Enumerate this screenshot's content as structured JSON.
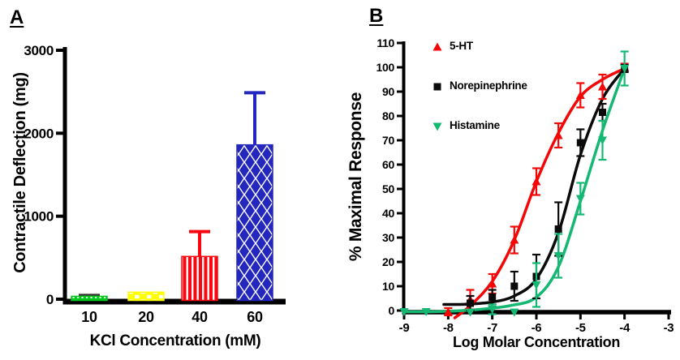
{
  "panels": {
    "a": {
      "label": "A"
    },
    "b": {
      "label": "B"
    }
  },
  "chart_data": [
    {
      "type": "bar",
      "panel": "A",
      "xlabel": "KCl Concentration (mM)",
      "ylabel": "Contractile Deflection (mg)",
      "categories": [
        "10",
        "20",
        "40",
        "60"
      ],
      "values": [
        35,
        85,
        515,
        1860
      ],
      "error_up": [
        10,
        0,
        300,
        628
      ],
      "ylim": [
        0,
        3000
      ],
      "yticks": [
        0,
        1000,
        2000,
        3000
      ],
      "grid": false,
      "bar_colors": [
        "#00c71c",
        "#ffff00",
        "#fb0510",
        "#2427bd"
      ],
      "error_colors": [
        "#333333",
        "#ffff00",
        "#fb0510",
        "#2427bd"
      ],
      "bar_patterns": [
        "dots",
        "checker",
        "vstripes",
        "diamonds"
      ]
    },
    {
      "type": "scatter",
      "panel": "B",
      "xlabel": "Log Molar Concentration",
      "ylabel": "% Maximal Response",
      "xlim": [
        -9,
        -3
      ],
      "ylim": [
        0,
        110
      ],
      "yticks": [
        0,
        10,
        20,
        30,
        40,
        50,
        60,
        70,
        80,
        90,
        100,
        110
      ],
      "xticks": [
        -9,
        -8,
        -7,
        -6,
        -5,
        -4,
        -3
      ],
      "grid": false,
      "legend_position": "top-left",
      "series": [
        {
          "name": "5-HT",
          "color": "#f40606",
          "marker": "triangle-up",
          "x": [
            -8,
            -7.5,
            -7,
            -6.5,
            -6,
            -5.5,
            -5,
            -4.5,
            -4
          ],
          "y": [
            -0.5,
            4.5,
            11,
            29,
            53,
            72,
            88.5,
            92,
            100
          ],
          "err": [
            1.5,
            4,
            4,
            5.5,
            5.5,
            5,
            5,
            5,
            1.5
          ],
          "curve": [
            [
              -7.85,
              -3
            ],
            [
              -7.5,
              2
            ],
            [
              -7,
              12
            ],
            [
              -6.5,
              29
            ],
            [
              -6,
              53
            ],
            [
              -5.5,
              73
            ],
            [
              -5,
              88
            ],
            [
              -4.5,
              95
            ],
            [
              -4,
              99.5
            ]
          ]
        },
        {
          "name": "Norepinephrine",
          "color": "#0a0a0a",
          "marker": "square",
          "x": [
            -7.5,
            -7,
            -6.5,
            -6,
            -5.5,
            -5,
            -4.5,
            -4
          ],
          "y": [
            3,
            5.5,
            10,
            14,
            33.5,
            69,
            81.5,
            99.5
          ],
          "err": [
            3,
            3,
            6,
            9,
            11,
            5.5,
            3.5,
            1.5
          ],
          "curve": [
            [
              -8.1,
              2.5
            ],
            [
              -7.6,
              2.6
            ],
            [
              -7,
              3.5
            ],
            [
              -6.5,
              6
            ],
            [
              -6,
              13
            ],
            [
              -5.5,
              32
            ],
            [
              -5,
              64
            ],
            [
              -4.5,
              87
            ],
            [
              -4,
              99.5
            ]
          ]
        },
        {
          "name": "Histamine",
          "color": "#14b873",
          "marker": "triangle-down",
          "x": [
            -9,
            -8.5,
            -7.5,
            -7,
            -6.5,
            -6,
            -5.5,
            -5,
            -4.5,
            -4
          ],
          "y": [
            -0.5,
            -0.5,
            -0.7,
            0.5,
            -0.7,
            10.5,
            22.5,
            46,
            70,
            99.5
          ],
          "err": [
            0,
            0,
            0,
            2,
            0,
            9,
            9,
            6.5,
            8,
            7
          ],
          "curve": [
            [
              -9,
              -0.5
            ],
            [
              -8.2,
              -0.4
            ],
            [
              -7.4,
              0.3
            ],
            [
              -6.6,
              2
            ],
            [
              -6,
              5.5
            ],
            [
              -5.5,
              18
            ],
            [
              -5,
              45
            ],
            [
              -4.5,
              74
            ],
            [
              -4,
              99.5
            ]
          ]
        }
      ]
    }
  ]
}
